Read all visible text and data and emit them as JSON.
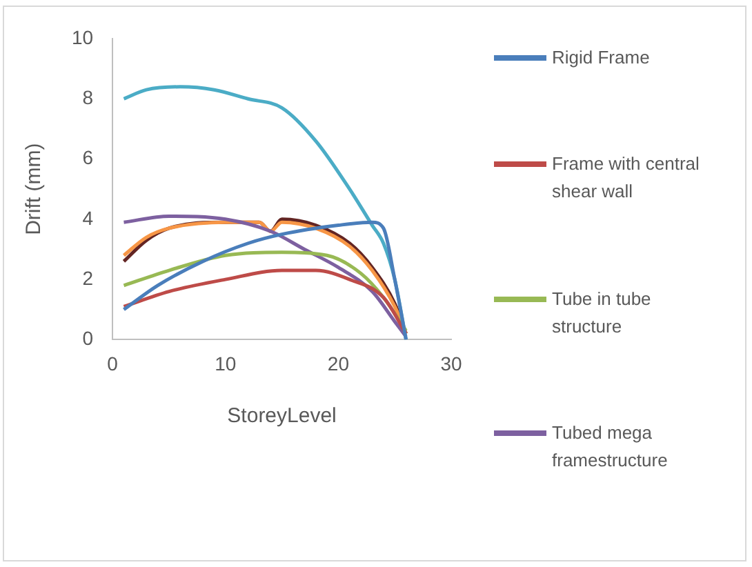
{
  "chart_data": {
    "type": "line",
    "xlabel": "StoreyLevel",
    "ylabel": "Drift (mm)",
    "xlim": [
      0,
      30
    ],
    "xticks": [
      0,
      10,
      20,
      30
    ],
    "ylim": [
      0,
      10
    ],
    "yticks": [
      0,
      2,
      4,
      6,
      8,
      10
    ],
    "grid": false,
    "legend": "right",
    "marker": "none",
    "line_style": "solid",
    "series": [
      {
        "name": "Rigid Frame",
        "color": "#4a7ebb",
        "x": [
          1,
          4,
          8,
          12,
          15,
          20,
          23,
          24,
          25,
          26
        ],
        "values": [
          1.0,
          1.8,
          2.6,
          3.2,
          3.5,
          3.8,
          3.9,
          3.7,
          2.0,
          0
        ]
      },
      {
        "name": "Frame with central shear wall",
        "color": "#be4b48",
        "x": [
          1,
          5,
          10,
          15,
          18,
          21,
          24,
          26
        ],
        "values": [
          1.1,
          1.6,
          2.0,
          2.3,
          2.3,
          2.0,
          1.4,
          0.2
        ]
      },
      {
        "name": "Tube in tube structure",
        "color": "#98b954",
        "x": [
          1,
          5,
          10,
          15,
          19,
          22,
          24,
          26
        ],
        "values": [
          1.8,
          2.3,
          2.8,
          2.9,
          2.8,
          2.2,
          1.4,
          0.3
        ]
      },
      {
        "name": "Tubed mega framestructure",
        "color": "#7d60a0",
        "x": [
          1,
          5,
          10,
          14,
          17,
          20,
          23,
          25,
          26
        ],
        "values": [
          3.9,
          4.1,
          4.0,
          3.6,
          3.0,
          2.4,
          1.6,
          0.6,
          0.1
        ]
      },
      {
        "color": "#4bacc6",
        "x": [
          1,
          3,
          6,
          9,
          12,
          15,
          18,
          21,
          23,
          24,
          25,
          26
        ],
        "values": [
          8.0,
          8.3,
          8.4,
          8.3,
          8.0,
          7.7,
          6.6,
          5.0,
          3.8,
          3.2,
          2.0,
          0
        ]
      },
      {
        "color": "#f79646",
        "x": [
          1,
          3,
          5,
          10,
          13,
          14,
          15,
          18,
          21,
          23,
          25,
          26
        ],
        "values": [
          2.8,
          3.4,
          3.7,
          3.9,
          3.9,
          3.6,
          3.9,
          3.7,
          3.1,
          2.3,
          1.1,
          0.2
        ]
      },
      {
        "color": "#632523",
        "x": [
          1,
          3,
          5,
          10,
          13,
          14,
          15,
          18,
          21,
          23,
          25,
          26
        ],
        "values": [
          2.6,
          3.3,
          3.7,
          3.9,
          3.9,
          3.6,
          4.0,
          3.8,
          3.2,
          2.4,
          1.2,
          0.2
        ]
      }
    ]
  }
}
